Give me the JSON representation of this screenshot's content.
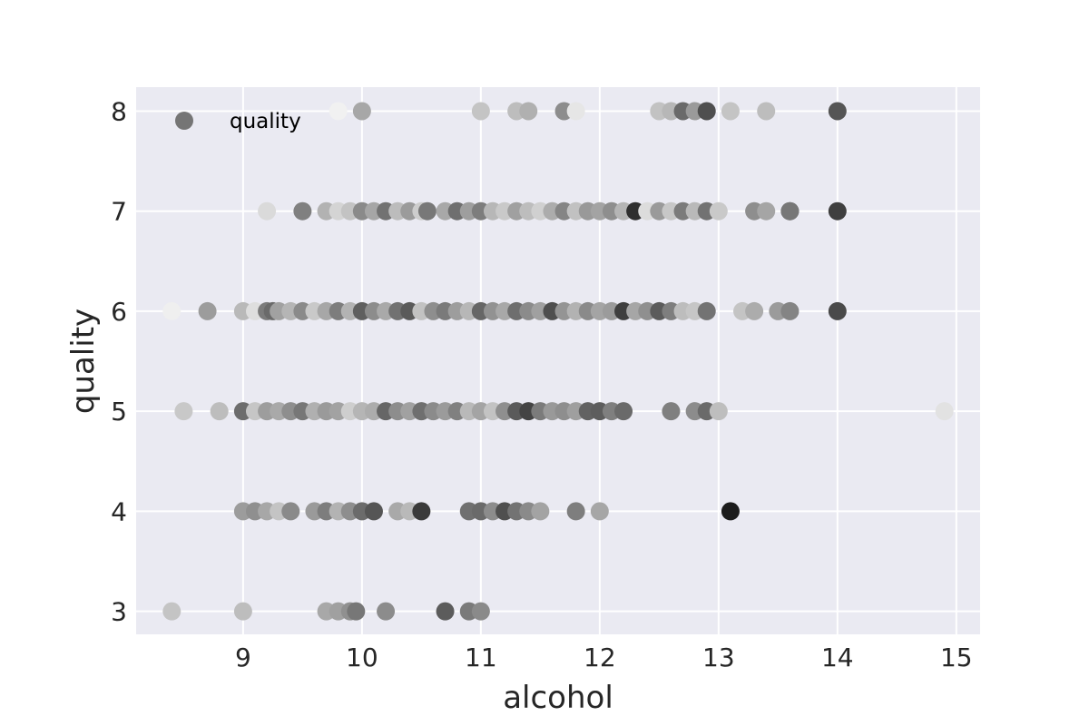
{
  "chart_data": {
    "type": "scatter",
    "title": "",
    "xlabel": "alcohol",
    "ylabel": "quality",
    "xlim": [
      8.1,
      15.2
    ],
    "ylim": [
      2.77,
      8.24
    ],
    "x_ticks": [
      9,
      10,
      11,
      12,
      13,
      14,
      15
    ],
    "y_ticks": [
      3,
      4,
      5,
      6,
      7,
      8
    ],
    "grid": true,
    "legend": {
      "position": "top-left",
      "entries": [
        "quality"
      ]
    },
    "style": {
      "background": "#eaeaf2",
      "grid": "#ffffff",
      "text": "#262626"
    },
    "series": [
      {
        "name": "quality",
        "points": [
          {
            "x": 8.4,
            "y": 3,
            "c": "#c4c4c4"
          },
          {
            "x": 9.0,
            "y": 3,
            "c": "#bdbdbd"
          },
          {
            "x": 9.7,
            "y": 3,
            "c": "#a8a8a8"
          },
          {
            "x": 9.8,
            "y": 3,
            "c": "#a0a0a0"
          },
          {
            "x": 9.9,
            "y": 3,
            "c": "#909090"
          },
          {
            "x": 9.95,
            "y": 3,
            "c": "#777777"
          },
          {
            "x": 10.2,
            "y": 3,
            "c": "#8c8c8c"
          },
          {
            "x": 10.7,
            "y": 3,
            "c": "#5c5c5c"
          },
          {
            "x": 10.9,
            "y": 3,
            "c": "#7a7a7a"
          },
          {
            "x": 11.0,
            "y": 3,
            "c": "#8a8a8a"
          },
          {
            "x": 9.0,
            "y": 4,
            "c": "#9c9c9c"
          },
          {
            "x": 9.1,
            "y": 4,
            "c": "#8f8f8f"
          },
          {
            "x": 9.2,
            "y": 4,
            "c": "#a7a7a7"
          },
          {
            "x": 9.3,
            "y": 4,
            "c": "#c4c4c4"
          },
          {
            "x": 9.4,
            "y": 4,
            "c": "#8a8a8a"
          },
          {
            "x": 9.6,
            "y": 4,
            "c": "#9a9a9a"
          },
          {
            "x": 9.7,
            "y": 4,
            "c": "#7d7d7d"
          },
          {
            "x": 9.8,
            "y": 4,
            "c": "#b3b3b3"
          },
          {
            "x": 9.9,
            "y": 4,
            "c": "#8e8e8e"
          },
          {
            "x": 10.0,
            "y": 4,
            "c": "#6b6b6b"
          },
          {
            "x": 10.1,
            "y": 4,
            "c": "#555555"
          },
          {
            "x": 10.3,
            "y": 4,
            "c": "#a9a9a9"
          },
          {
            "x": 10.4,
            "y": 4,
            "c": "#b9b9b9"
          },
          {
            "x": 10.5,
            "y": 4,
            "c": "#3a3a3a"
          },
          {
            "x": 10.9,
            "y": 4,
            "c": "#707070"
          },
          {
            "x": 11.0,
            "y": 4,
            "c": "#6a6a6a"
          },
          {
            "x": 11.1,
            "y": 4,
            "c": "#8c8c8c"
          },
          {
            "x": 11.2,
            "y": 4,
            "c": "#4f4f4f"
          },
          {
            "x": 11.3,
            "y": 4,
            "c": "#737373"
          },
          {
            "x": 11.4,
            "y": 4,
            "c": "#8a8a8a"
          },
          {
            "x": 11.5,
            "y": 4,
            "c": "#a3a3a3"
          },
          {
            "x": 11.8,
            "y": 4,
            "c": "#7e7e7e"
          },
          {
            "x": 12.0,
            "y": 4,
            "c": "#a6a6a6"
          },
          {
            "x": 13.1,
            "y": 4,
            "c": "#1c1c1c"
          },
          {
            "x": 8.5,
            "y": 5,
            "c": "#c8c8c8"
          },
          {
            "x": 8.8,
            "y": 5,
            "c": "#bdbdbd"
          },
          {
            "x": 9.0,
            "y": 5,
            "c": "#6d6d6d"
          },
          {
            "x": 9.1,
            "y": 5,
            "c": "#c6c6c6"
          },
          {
            "x": 9.2,
            "y": 5,
            "c": "#9d9d9d"
          },
          {
            "x": 9.3,
            "y": 5,
            "c": "#a9a9a9"
          },
          {
            "x": 9.4,
            "y": 5,
            "c": "#8e8e8e"
          },
          {
            "x": 9.5,
            "y": 5,
            "c": "#777777"
          },
          {
            "x": 9.6,
            "y": 5,
            "c": "#b0b0b0"
          },
          {
            "x": 9.7,
            "y": 5,
            "c": "#9a9a9a"
          },
          {
            "x": 9.8,
            "y": 5,
            "c": "#a2a2a2"
          },
          {
            "x": 9.9,
            "y": 5,
            "c": "#cecece"
          },
          {
            "x": 10.0,
            "y": 5,
            "c": "#b5b5b5"
          },
          {
            "x": 10.1,
            "y": 5,
            "c": "#acacac"
          },
          {
            "x": 10.2,
            "y": 5,
            "c": "#666666"
          },
          {
            "x": 10.3,
            "y": 5,
            "c": "#8d8d8d"
          },
          {
            "x": 10.4,
            "y": 5,
            "c": "#a1a1a1"
          },
          {
            "x": 10.5,
            "y": 5,
            "c": "#d4d4d4"
          },
          {
            "x": 10.5,
            "y": 5,
            "c": "#6f6f6f"
          },
          {
            "x": 10.6,
            "y": 5,
            "c": "#8b8b8b"
          },
          {
            "x": 10.7,
            "y": 5,
            "c": "#9b9b9b"
          },
          {
            "x": 10.8,
            "y": 5,
            "c": "#808080"
          },
          {
            "x": 10.9,
            "y": 5,
            "c": "#b9b9b9"
          },
          {
            "x": 11.0,
            "y": 5,
            "c": "#a4a4a4"
          },
          {
            "x": 11.1,
            "y": 5,
            "c": "#c3c3c3"
          },
          {
            "x": 11.2,
            "y": 5,
            "c": "#8f8f8f"
          },
          {
            "x": 11.3,
            "y": 5,
            "c": "#5a5a5a"
          },
          {
            "x": 11.4,
            "y": 5,
            "c": "#444444"
          },
          {
            "x": 11.5,
            "y": 5,
            "c": "#7b7b7b"
          },
          {
            "x": 11.6,
            "y": 5,
            "c": "#999999"
          },
          {
            "x": 11.7,
            "y": 5,
            "c": "#8e8e8e"
          },
          {
            "x": 11.8,
            "y": 5,
            "c": "#9f9f9f"
          },
          {
            "x": 11.9,
            "y": 5,
            "c": "#626262"
          },
          {
            "x": 12.0,
            "y": 5,
            "c": "#5d5d5d"
          },
          {
            "x": 12.1,
            "y": 5,
            "c": "#7f7f7f"
          },
          {
            "x": 12.2,
            "y": 5,
            "c": "#6a6a6a"
          },
          {
            "x": 12.6,
            "y": 5,
            "c": "#7f7f7f"
          },
          {
            "x": 12.8,
            "y": 5,
            "c": "#8c8c8c"
          },
          {
            "x": 12.9,
            "y": 5,
            "c": "#6a6a6a"
          },
          {
            "x": 13.0,
            "y": 5,
            "c": "#bebebe"
          },
          {
            "x": 14.9,
            "y": 5,
            "c": "#e2e2e2"
          },
          {
            "x": 8.4,
            "y": 6,
            "c": "#efefef"
          },
          {
            "x": 8.7,
            "y": 6,
            "c": "#9c9c9c"
          },
          {
            "x": 9.0,
            "y": 6,
            "c": "#b9b9b9"
          },
          {
            "x": 9.1,
            "y": 6,
            "c": "#dedede"
          },
          {
            "x": 9.2,
            "y": 6,
            "c": "#7b7b7b"
          },
          {
            "x": 9.25,
            "y": 6,
            "c": "#6a6a6a"
          },
          {
            "x": 9.3,
            "y": 6,
            "c": "#a1a1a1"
          },
          {
            "x": 9.4,
            "y": 6,
            "c": "#b5b5b5"
          },
          {
            "x": 9.5,
            "y": 6,
            "c": "#8a8a8a"
          },
          {
            "x": 9.6,
            "y": 6,
            "c": "#c9c9c9"
          },
          {
            "x": 9.7,
            "y": 6,
            "c": "#a7a7a7"
          },
          {
            "x": 9.8,
            "y": 6,
            "c": "#7d7d7d"
          },
          {
            "x": 9.9,
            "y": 6,
            "c": "#b3b3b3"
          },
          {
            "x": 10.0,
            "y": 6,
            "c": "#5f5f5f"
          },
          {
            "x": 10.1,
            "y": 6,
            "c": "#8c8c8c"
          },
          {
            "x": 10.2,
            "y": 6,
            "c": "#a9a9a9"
          },
          {
            "x": 10.3,
            "y": 6,
            "c": "#717171"
          },
          {
            "x": 10.4,
            "y": 6,
            "c": "#5a5a5a"
          },
          {
            "x": 10.5,
            "y": 6,
            "c": "#c2c2c2"
          },
          {
            "x": 10.6,
            "y": 6,
            "c": "#8e8e8e"
          },
          {
            "x": 10.7,
            "y": 6,
            "c": "#7a7a7a"
          },
          {
            "x": 10.8,
            "y": 6,
            "c": "#9d9d9d"
          },
          {
            "x": 10.9,
            "y": 6,
            "c": "#b7b7b7"
          },
          {
            "x": 11.0,
            "y": 6,
            "c": "#666666"
          },
          {
            "x": 11.1,
            "y": 6,
            "c": "#929292"
          },
          {
            "x": 11.2,
            "y": 6,
            "c": "#a8a8a8"
          },
          {
            "x": 11.3,
            "y": 6,
            "c": "#6e6e6e"
          },
          {
            "x": 11.4,
            "y": 6,
            "c": "#8b8b8b"
          },
          {
            "x": 11.5,
            "y": 6,
            "c": "#a0a0a0"
          },
          {
            "x": 11.6,
            "y": 6,
            "c": "#4e4e4e"
          },
          {
            "x": 11.7,
            "y": 6,
            "c": "#949494"
          },
          {
            "x": 11.8,
            "y": 6,
            "c": "#b2b2b2"
          },
          {
            "x": 11.9,
            "y": 6,
            "c": "#8a8a8a"
          },
          {
            "x": 12.0,
            "y": 6,
            "c": "#a4a4a4"
          },
          {
            "x": 12.1,
            "y": 6,
            "c": "#9b9b9b"
          },
          {
            "x": 12.2,
            "y": 6,
            "c": "#3f3f3f"
          },
          {
            "x": 12.3,
            "y": 6,
            "c": "#a6a6a6"
          },
          {
            "x": 12.4,
            "y": 6,
            "c": "#8f8f8f"
          },
          {
            "x": 12.5,
            "y": 6,
            "c": "#5b5b5b"
          },
          {
            "x": 12.6,
            "y": 6,
            "c": "#7e7e7e"
          },
          {
            "x": 12.7,
            "y": 6,
            "c": "#bdbdbd"
          },
          {
            "x": 12.8,
            "y": 6,
            "c": "#c6c6c6"
          },
          {
            "x": 12.9,
            "y": 6,
            "c": "#737373"
          },
          {
            "x": 13.2,
            "y": 6,
            "c": "#c4c4c4"
          },
          {
            "x": 13.3,
            "y": 6,
            "c": "#acacac"
          },
          {
            "x": 13.5,
            "y": 6,
            "c": "#9b9b9b"
          },
          {
            "x": 13.6,
            "y": 6,
            "c": "#848484"
          },
          {
            "x": 14.0,
            "y": 6,
            "c": "#4a4a4a"
          },
          {
            "x": 9.2,
            "y": 7,
            "c": "#dadada"
          },
          {
            "x": 9.5,
            "y": 7,
            "c": "#808080"
          },
          {
            "x": 9.7,
            "y": 7,
            "c": "#b2b2b2"
          },
          {
            "x": 9.8,
            "y": 7,
            "c": "#d4d4d4"
          },
          {
            "x": 9.9,
            "y": 7,
            "c": "#c3c3c3"
          },
          {
            "x": 10.0,
            "y": 7,
            "c": "#8a8a8a"
          },
          {
            "x": 10.1,
            "y": 7,
            "c": "#a6a6a6"
          },
          {
            "x": 10.2,
            "y": 7,
            "c": "#727272"
          },
          {
            "x": 10.3,
            "y": 7,
            "c": "#bcbcbc"
          },
          {
            "x": 10.4,
            "y": 7,
            "c": "#9b9b9b"
          },
          {
            "x": 10.5,
            "y": 7,
            "c": "#cdcdcd"
          },
          {
            "x": 10.55,
            "y": 7,
            "c": "#787878"
          },
          {
            "x": 10.7,
            "y": 7,
            "c": "#a8a8a8"
          },
          {
            "x": 10.8,
            "y": 7,
            "c": "#6f6f6f"
          },
          {
            "x": 10.9,
            "y": 7,
            "c": "#9e9e9e"
          },
          {
            "x": 11.0,
            "y": 7,
            "c": "#7d7d7d"
          },
          {
            "x": 11.1,
            "y": 7,
            "c": "#b7b7b7"
          },
          {
            "x": 11.2,
            "y": 7,
            "c": "#c9c9c9"
          },
          {
            "x": 11.3,
            "y": 7,
            "c": "#a0a0a0"
          },
          {
            "x": 11.4,
            "y": 7,
            "c": "#bdbdbd"
          },
          {
            "x": 11.5,
            "y": 7,
            "c": "#d0d0d0"
          },
          {
            "x": 11.6,
            "y": 7,
            "c": "#acacac"
          },
          {
            "x": 11.7,
            "y": 7,
            "c": "#858585"
          },
          {
            "x": 11.8,
            "y": 7,
            "c": "#c1c1c1"
          },
          {
            "x": 11.9,
            "y": 7,
            "c": "#999999"
          },
          {
            "x": 12.0,
            "y": 7,
            "c": "#a3a3a3"
          },
          {
            "x": 12.1,
            "y": 7,
            "c": "#8e8e8e"
          },
          {
            "x": 12.2,
            "y": 7,
            "c": "#b5b5b5"
          },
          {
            "x": 12.3,
            "y": 7,
            "c": "#2f2f2f"
          },
          {
            "x": 12.4,
            "y": 7,
            "c": "#dcdcdc"
          },
          {
            "x": 12.5,
            "y": 7,
            "c": "#9a9a9a"
          },
          {
            "x": 12.6,
            "y": 7,
            "c": "#c7c7c7"
          },
          {
            "x": 12.7,
            "y": 7,
            "c": "#7b7b7b"
          },
          {
            "x": 12.8,
            "y": 7,
            "c": "#b9b9b9"
          },
          {
            "x": 12.9,
            "y": 7,
            "c": "#727272"
          },
          {
            "x": 13.0,
            "y": 7,
            "c": "#c9c9c9"
          },
          {
            "x": 13.3,
            "y": 7,
            "c": "#8e8e8e"
          },
          {
            "x": 13.4,
            "y": 7,
            "c": "#a5a5a5"
          },
          {
            "x": 13.6,
            "y": 7,
            "c": "#6a6a6a"
          },
          {
            "x": 13.6,
            "y": 7,
            "c": "#777777"
          },
          {
            "x": 14.0,
            "y": 7,
            "c": "#3f3f3f"
          },
          {
            "x": 9.8,
            "y": 8,
            "c": "#f1f1f1"
          },
          {
            "x": 10.0,
            "y": 8,
            "c": "#a7a7a7"
          },
          {
            "x": 11.0,
            "y": 8,
            "c": "#c4c4c4"
          },
          {
            "x": 11.3,
            "y": 8,
            "c": "#bdbdbd"
          },
          {
            "x": 11.4,
            "y": 8,
            "c": "#b0b0b0"
          },
          {
            "x": 11.7,
            "y": 8,
            "c": "#8d8d8d"
          },
          {
            "x": 11.8,
            "y": 8,
            "c": "#e6e6e6"
          },
          {
            "x": 12.5,
            "y": 8,
            "c": "#c2c2c2"
          },
          {
            "x": 12.6,
            "y": 8,
            "c": "#b7b7b7"
          },
          {
            "x": 12.7,
            "y": 8,
            "c": "#6a6a6a"
          },
          {
            "x": 12.8,
            "y": 8,
            "c": "#9a9a9a"
          },
          {
            "x": 12.9,
            "y": 8,
            "c": "#4f4f4f"
          },
          {
            "x": 13.1,
            "y": 8,
            "c": "#c4c4c4"
          },
          {
            "x": 13.4,
            "y": 8,
            "c": "#bdbdbd"
          },
          {
            "x": 14.0,
            "y": 8,
            "c": "#555555"
          }
        ]
      }
    ]
  }
}
